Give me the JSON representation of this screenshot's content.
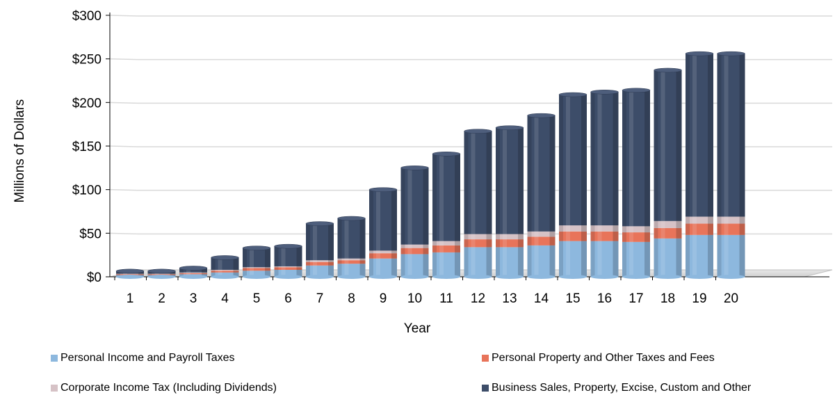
{
  "chart_data": {
    "type": "bar",
    "stacked": true,
    "title": "",
    "xlabel": "Year",
    "ylabel": "Millions of Dollars",
    "categories": [
      "1",
      "2",
      "3",
      "4",
      "5",
      "6",
      "7",
      "8",
      "9",
      "10",
      "11",
      "12",
      "13",
      "14",
      "15",
      "16",
      "17",
      "18",
      "19",
      "20"
    ],
    "ylim": [
      0,
      300
    ],
    "yticks": [
      "$0",
      "$50",
      "$100",
      "$150",
      "$200",
      "$250",
      "$300"
    ],
    "ytick_values": [
      0,
      50,
      100,
      150,
      200,
      250,
      300
    ],
    "grid": true,
    "legend_position": "bottom",
    "series": [
      {
        "name": "Personal Income and Payroll Taxes",
        "color": "#8DB8DE",
        "values": [
          2,
          2,
          3,
          5,
          7,
          8,
          13,
          15,
          21,
          26,
          28,
          34,
          34,
          36,
          41,
          41,
          40,
          44,
          48,
          48
        ]
      },
      {
        "name": "Personal Property and Other Taxes and Fees",
        "color": "#E8745A",
        "values": [
          1,
          1,
          1,
          2,
          3,
          3,
          4,
          4,
          6,
          7,
          8,
          9,
          9,
          10,
          11,
          11,
          11,
          12,
          13,
          13
        ]
      },
      {
        "name": "Corporate Income Tax (Including Dividends)",
        "color": "#D6C2C6",
        "values": [
          0.5,
          0.5,
          1,
          1,
          1,
          1,
          2,
          2,
          3,
          4,
          5,
          6,
          6,
          6,
          7,
          7,
          7,
          8,
          8,
          8
        ]
      },
      {
        "name": "Business Sales, Property, Excise, Custom and Other",
        "color": "#3D4D69",
        "values": [
          3,
          3,
          5,
          14,
          22,
          23,
          42,
          46,
          70,
          88,
          100,
          118,
          122,
          133,
          150,
          153,
          156,
          173,
          187,
          187
        ]
      }
    ]
  }
}
